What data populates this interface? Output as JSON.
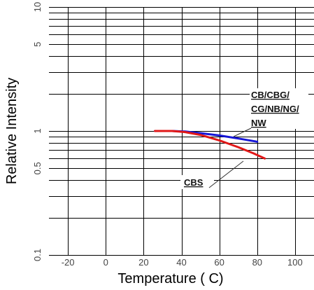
{
  "chart_data": {
    "type": "line",
    "title": "",
    "xlabel": "Temperature ( C)",
    "ylabel": "Relative Intensity",
    "xlim": [
      -30,
      110
    ],
    "ylim": [
      0.1,
      10
    ],
    "y_scale": "log",
    "grid": true,
    "x_ticks": [
      "-20",
      "0",
      "20",
      "40",
      "60",
      "80",
      "100"
    ],
    "y_ticks": [
      "0.1",
      "0.5",
      "1",
      "5",
      "10"
    ],
    "series": [
      {
        "name": "CB/CBG/CG/NB/NG/NW",
        "color": "#1515d6",
        "x": [
          26,
          35,
          42,
          50,
          60,
          70,
          80
        ],
        "y": [
          1.0,
          1.0,
          0.99,
          0.96,
          0.92,
          0.87,
          0.82
        ]
      },
      {
        "name": "CBS",
        "color": "#e01818",
        "x": [
          26,
          35,
          42,
          50,
          60,
          70,
          78,
          84
        ],
        "y": [
          1.0,
          1.0,
          0.98,
          0.93,
          0.84,
          0.74,
          0.66,
          0.6
        ]
      }
    ],
    "annotations": [
      {
        "lines": [
          "CB/CBG/",
          "CG/NB/NG/",
          "NW"
        ]
      },
      {
        "lines": [
          "CBS"
        ]
      }
    ]
  }
}
